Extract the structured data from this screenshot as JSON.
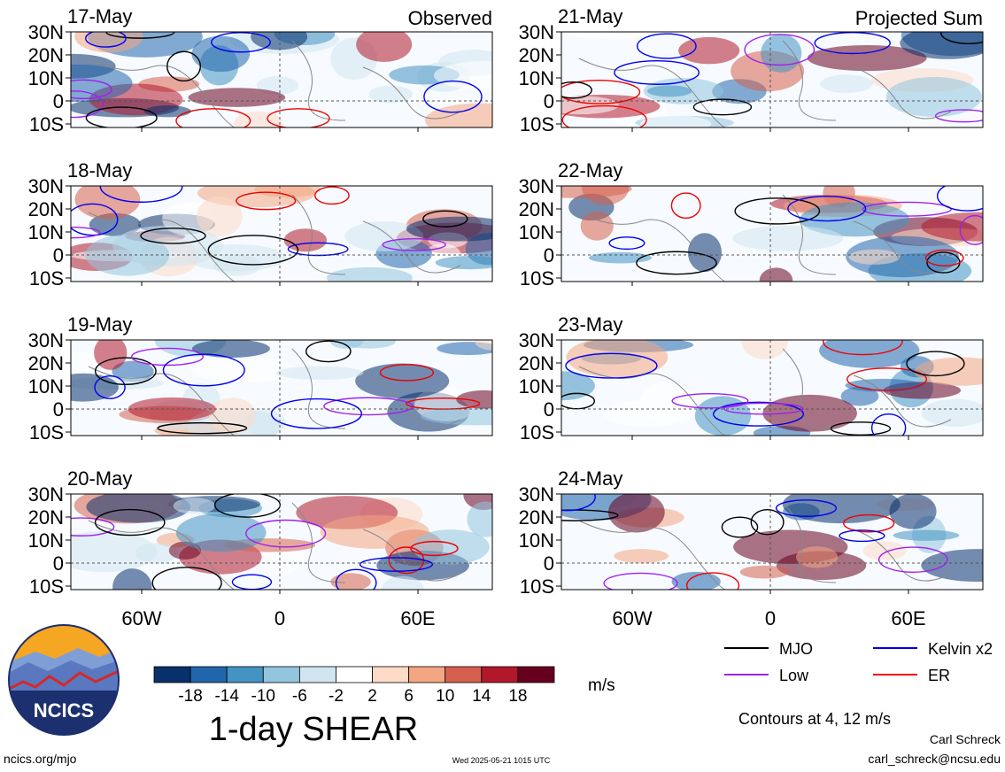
{
  "chart_data": {
    "type": "heatmap",
    "title": "1-day SHEAR",
    "columns": [
      {
        "label": "Observed",
        "dates": [
          "17-May",
          "18-May",
          "19-May",
          "20-May"
        ]
      },
      {
        "label": "Projected Sum",
        "dates": [
          "21-May",
          "22-May",
          "23-May",
          "24-May"
        ]
      }
    ],
    "lat_ticks": [
      "30N",
      "20N",
      "10N",
      "0",
      "10S"
    ],
    "lon_ticks": [
      "60W",
      "0",
      "60E"
    ],
    "colorbar": {
      "units": "m/s",
      "labels": [
        "-18",
        "-14",
        "-10",
        "-6",
        "-2",
        "2",
        "6",
        "10",
        "14",
        "18"
      ],
      "colors": [
        "#08306b",
        "#2166ac",
        "#4393c3",
        "#92c5de",
        "#d1e5f0",
        "#ffffff",
        "#fddbc7",
        "#f4a582",
        "#d6604d",
        "#b2182b",
        "#67001f"
      ]
    },
    "legend": [
      {
        "name": "MJO",
        "color": "#000000"
      },
      {
        "name": "Kelvin x2",
        "color": "#0000ee"
      },
      {
        "name": "Low",
        "color": "#a020f0"
      },
      {
        "name": "ER",
        "color": "#ee0000"
      }
    ],
    "contour_note": "Contours at 4, 12 m/s"
  },
  "footer": {
    "left": "ncics.org/mjo",
    "center": "Wed 2025-05-21 1015 UTC",
    "author": "Carl Schreck",
    "email": "carl_schreck@ncsu.edu"
  },
  "logo": {
    "text": "NCICS"
  }
}
